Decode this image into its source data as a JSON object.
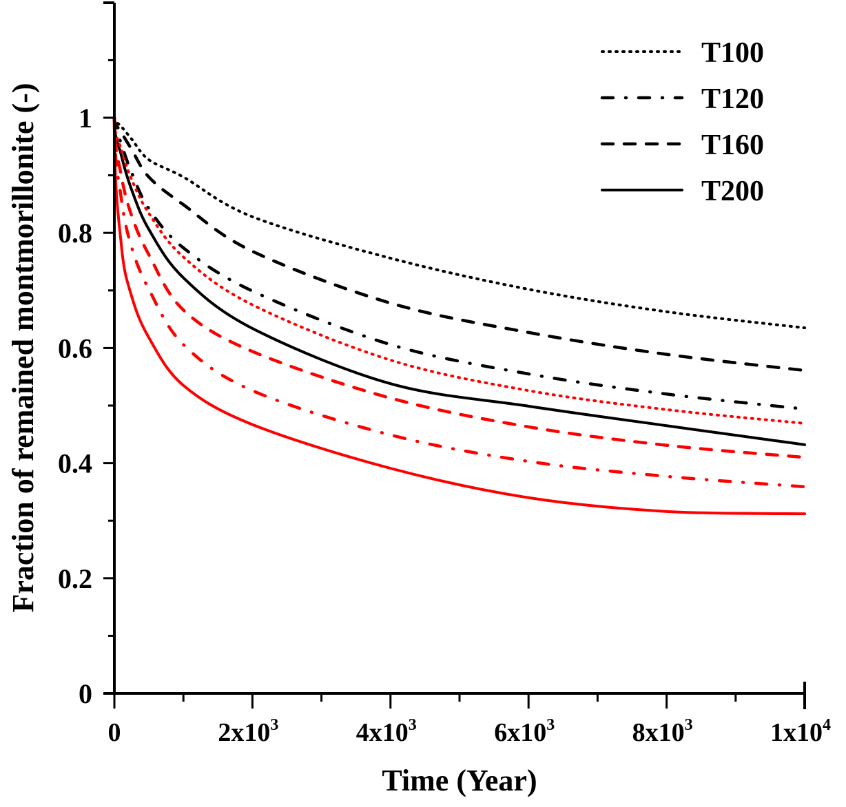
{
  "chart_data": {
    "type": "line",
    "title": "",
    "xlabel": "Time (Year)",
    "ylabel": "Fraction of remained montmorillonite (-)",
    "xlim": [
      0,
      10000
    ],
    "ylim": [
      0,
      1.2
    ],
    "grid": false,
    "legend_position": "top-right",
    "x_ticks": [
      {
        "value": 0,
        "base": "0",
        "exp": ""
      },
      {
        "value": 2000,
        "base": "2x10",
        "exp": "3"
      },
      {
        "value": 4000,
        "base": "4x10",
        "exp": "3"
      },
      {
        "value": 6000,
        "base": "6x10",
        "exp": "3"
      },
      {
        "value": 8000,
        "base": "8x10",
        "exp": "3"
      },
      {
        "value": 10000,
        "base": "1x10",
        "exp": "4"
      }
    ],
    "x_minor_ticks": [
      1000,
      3000,
      5000,
      7000,
      9000
    ],
    "y_ticks": [
      {
        "value": 0,
        "label": "0"
      },
      {
        "value": 0.2,
        "label": "0.2"
      },
      {
        "value": 0.4,
        "label": "0.4"
      },
      {
        "value": 0.6,
        "label": "0.6"
      },
      {
        "value": 0.8,
        "label": "0.8"
      },
      {
        "value": 1.0,
        "label": "1"
      }
    ],
    "y_minor_ticks": [
      0.1,
      0.3,
      0.5,
      0.7,
      0.9,
      1.1
    ],
    "x": [
      0,
      100,
      250,
      500,
      1000,
      2000,
      4000,
      6000,
      8000,
      10000
    ],
    "legend": [
      {
        "label": "T100",
        "style": "dotted"
      },
      {
        "label": "T120",
        "style": "dashdot"
      },
      {
        "label": "T160",
        "style": "dashed"
      },
      {
        "label": "T200",
        "style": "solid"
      }
    ],
    "series": [
      {
        "name": "T100 (black)",
        "color": "#000000",
        "style": "dotted",
        "values": [
          1.0,
          0.985,
          0.963,
          0.927,
          0.897,
          0.828,
          0.756,
          0.702,
          0.663,
          0.635
        ]
      },
      {
        "name": "T120 (black)",
        "color": "#000000",
        "style": "dashdot",
        "values": [
          1.0,
          0.955,
          0.905,
          0.842,
          0.774,
          0.699,
          0.606,
          0.555,
          0.52,
          0.494
        ]
      },
      {
        "name": "T160 (black)",
        "color": "#000000",
        "style": "dashed",
        "values": [
          1.0,
          0.975,
          0.945,
          0.897,
          0.849,
          0.768,
          0.678,
          0.627,
          0.589,
          0.561
        ]
      },
      {
        "name": "T200 (black)",
        "color": "#000000",
        "style": "solid",
        "values": [
          1.0,
          0.935,
          0.875,
          0.806,
          0.722,
          0.634,
          0.538,
          0.499,
          0.465,
          0.432
        ]
      },
      {
        "name": "T100 (red)",
        "color": "#ff0000",
        "style": "dotted",
        "values": [
          1.0,
          0.945,
          0.893,
          0.834,
          0.758,
          0.675,
          0.579,
          0.526,
          0.493,
          0.469
        ]
      },
      {
        "name": "T120 (red)",
        "color": "#ff0000",
        "style": "dashdot",
        "values": [
          1.0,
          0.86,
          0.775,
          0.702,
          0.606,
          0.526,
          0.449,
          0.403,
          0.377,
          0.359
        ]
      },
      {
        "name": "T160 (red)",
        "color": "#ff0000",
        "style": "dashed",
        "values": [
          1.0,
          0.9,
          0.83,
          0.762,
          0.666,
          0.594,
          0.513,
          0.463,
          0.431,
          0.41
        ]
      },
      {
        "name": "T200 (red)",
        "color": "#ff0000",
        "style": "solid",
        "values": [
          1.0,
          0.78,
          0.69,
          0.618,
          0.535,
          0.467,
          0.391,
          0.34,
          0.316,
          0.312
        ]
      }
    ]
  }
}
